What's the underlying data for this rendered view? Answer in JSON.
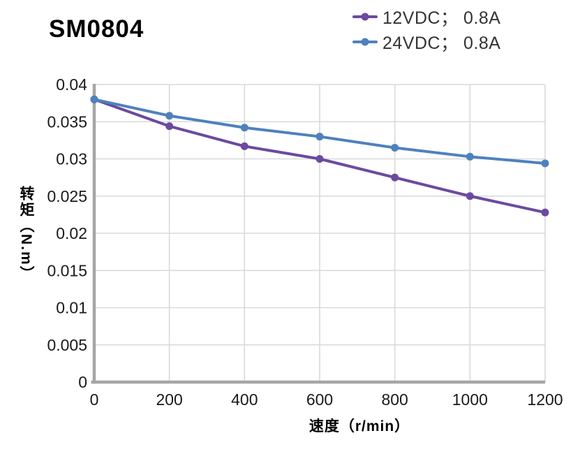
{
  "chart_data": {
    "type": "line",
    "title": "SM0804",
    "xlabel": "速度（r/min）",
    "ylabel": "转矩（N.m）",
    "x": [
      0,
      200,
      400,
      600,
      800,
      1000,
      1200
    ],
    "series": [
      {
        "id": "12vdc",
        "name": "12VDC； 0.8A",
        "color": "#6B4A9F",
        "values": [
          0.038,
          0.0344,
          0.0317,
          0.03,
          0.0275,
          0.025,
          0.0228
        ]
      },
      {
        "id": "24vdc",
        "name": "24VDC； 0.8A",
        "color": "#4E81BD",
        "values": [
          0.038,
          0.0358,
          0.0342,
          0.033,
          0.0315,
          0.0303,
          0.0294
        ]
      }
    ],
    "xlim": [
      0,
      1200
    ],
    "ylim": [
      0,
      0.04
    ],
    "xticks": [
      0,
      200,
      400,
      600,
      800,
      1000,
      1200
    ],
    "yticks": [
      0,
      0.005,
      0.01,
      0.015,
      0.02,
      0.025,
      0.03,
      0.035,
      0.04
    ],
    "grid": true,
    "legend_position": "top-right",
    "marker": "circle",
    "colors": {
      "grid": "#D9D9D9",
      "axis": "#A6A6A6",
      "tick_text": "#1A1A1A",
      "title_text": "#000000",
      "legend_text": "#333333"
    }
  }
}
